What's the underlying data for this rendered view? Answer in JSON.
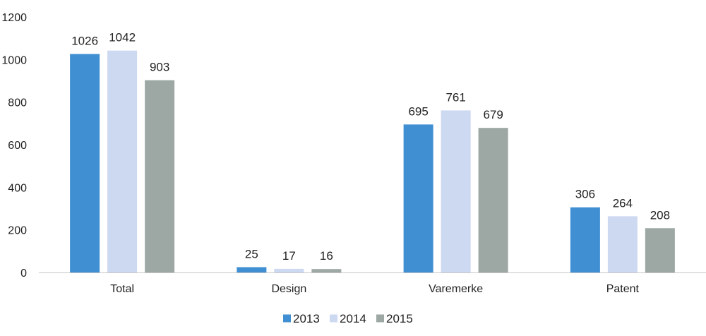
{
  "chart_data": {
    "type": "bar",
    "title": "",
    "xlabel": "",
    "ylabel": "",
    "categories": [
      "Total",
      "Design",
      "Varemerke",
      "Patent"
    ],
    "series": [
      {
        "name": "2013",
        "color": "#3f8fd2",
        "values": [
          1026,
          25,
          695,
          306
        ]
      },
      {
        "name": "2014",
        "color": "#cdd8f1",
        "values": [
          1042,
          17,
          761,
          264
        ]
      },
      {
        "name": "2015",
        "color": "#9da8a5",
        "values": [
          903,
          16,
          679,
          208
        ]
      }
    ],
    "ylim": [
      0,
      1200
    ],
    "yticks": [
      0,
      200,
      400,
      600,
      800,
      1000,
      1200
    ],
    "grid": false,
    "legend": "bottom-center"
  }
}
